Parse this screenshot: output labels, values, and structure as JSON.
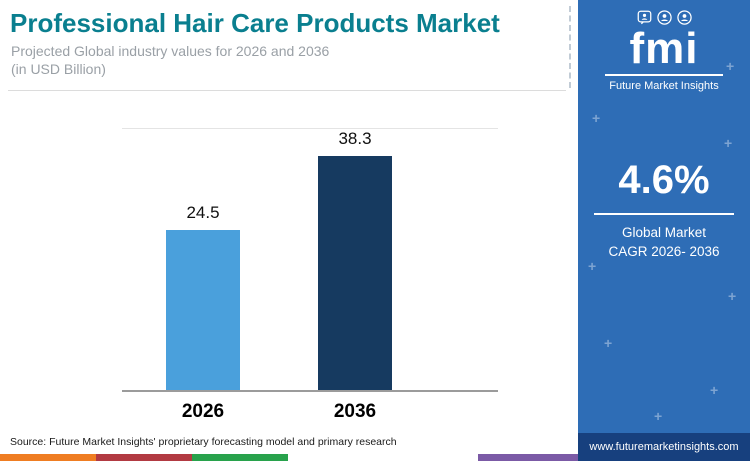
{
  "header": {
    "title": "Professional Hair Care Products Market",
    "subtitle_line1": "Projected Global industry values for 2026 and 2036",
    "subtitle_line2": "(in USD Billion)",
    "title_color": "#0a7f8f"
  },
  "chart_data": {
    "type": "bar",
    "title": "Professional Hair Care Products Market",
    "subtitle": "Projected Global industry values for 2026 and 2036 (in USD Billion)",
    "categories": [
      "2026",
      "2036"
    ],
    "values": [
      24.5,
      38.3
    ],
    "unit": "USD Billion",
    "ylim": [
      0,
      40
    ],
    "grid": false,
    "legend_position": "none",
    "bar_colors": [
      "#4aa0dc",
      "#163a60"
    ]
  },
  "sidebar": {
    "logo_text": "fmi",
    "logo_caption": "Future Market Insights",
    "cagr_value": "4.6%",
    "cagr_label_line1": "Global Market",
    "cagr_label_line2": "CAGR 2026- 2036",
    "website": "www.futuremarketinsights.com",
    "colors": {
      "background": "#2e6db6",
      "footer_background": "#17407e"
    }
  },
  "footer": {
    "source": "Source: Future Market Insights' proprietary forecasting model and primary research",
    "stripe_colors": [
      "#ef7d22",
      "#b23a42",
      "#28a24c",
      "#ffffff",
      "#7b5aa6"
    ]
  }
}
